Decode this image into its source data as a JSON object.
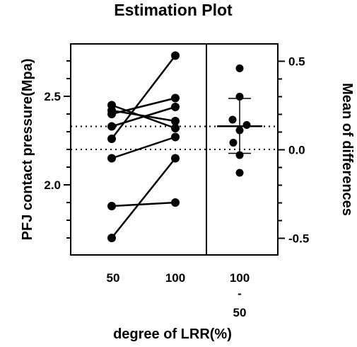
{
  "chart_data": {
    "type": "scatter",
    "subtype": "estimation-plot",
    "title": "Estimation Plot",
    "xlabel": "degree of LRR(%)",
    "ylabel_left": "PFJ contact pressure(Mpa)",
    "ylabel_right": "Mean of differences",
    "categories": [
      "50",
      "100"
    ],
    "difference_label": [
      "100",
      "-",
      "50"
    ],
    "left_axis": {
      "ylim": [
        1.6,
        2.8
      ],
      "ticks": [
        2.0,
        2.5
      ],
      "tick_labels": [
        "2.0",
        "2.5"
      ]
    },
    "right_axis": {
      "ylim": [
        -0.6,
        0.6
      ],
      "ticks": [
        -0.5,
        0.0,
        0.5
      ],
      "tick_labels": [
        "-0.5",
        "0.0",
        "0.5"
      ]
    },
    "pairs": [
      {
        "before": 2.45,
        "after": 2.32
      },
      {
        "before": 2.42,
        "after": 2.36
      },
      {
        "before": 2.4,
        "after": 2.49
      },
      {
        "before": 2.33,
        "after": 2.44
      },
      {
        "before": 2.26,
        "after": 2.73
      },
      {
        "before": 2.15,
        "after": 2.27
      },
      {
        "before": 1.88,
        "after": 1.9
      },
      {
        "before": 1.7,
        "after": 2.15
      }
    ],
    "differences": [
      0.46,
      0.3,
      0.17,
      0.14,
      0.11,
      0.04,
      -0.03,
      -0.13
    ],
    "mean_difference": 0.133,
    "ci": [
      -0.02,
      0.29
    ],
    "reference_lines_left": [
      2.33,
      2.2
    ],
    "grid": false,
    "legend": "none"
  }
}
